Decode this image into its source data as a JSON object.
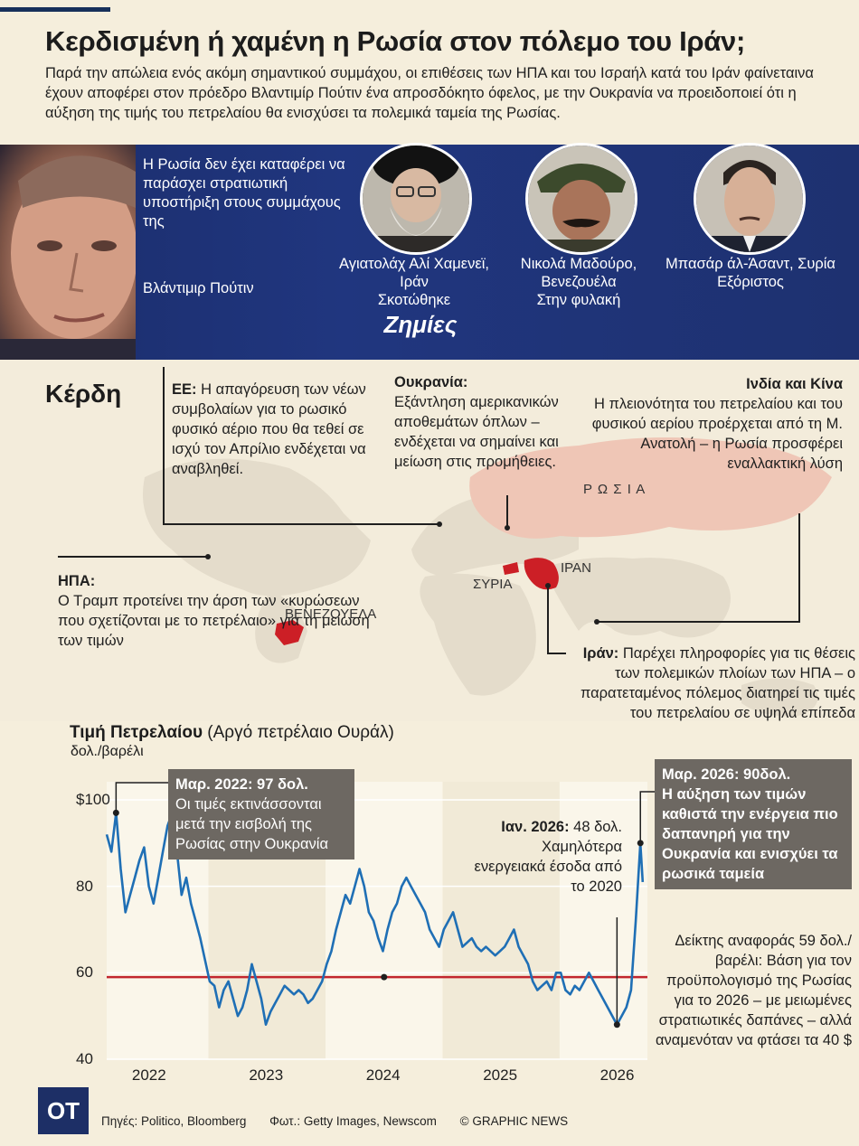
{
  "header": {
    "title": "Κερδισμένη ή χαμένη η Ρωσία στον πόλεμο του Ιράν;",
    "subtitle": "Παρά την απώλεια ενός ακόμη σημαντικού συμμάχου, οι επιθέσεις των ΗΠΑ και του Ισραήλ κατά του Ιράν φαίνεταινα έχουν αποφέρει στον πρόεδρο Βλαντιμίρ Πούτιν ένα απροσδόκητο όφελος, με την Ουκρανία να προειδοποιεί ότι η αύξηση της τιμής του πετρελαίου θα ενισχύσει τα πολεμικά ταμεία της Ρωσίας."
  },
  "losses": {
    "putin_quote": "Η Ρωσία δεν έχει καταφέρει να παράσχει στρατιωτική υποστήριξη στους συμμάχους της",
    "putin_name": "Βλάντιμιρ Πούτιν",
    "title": "Ζημίες",
    "allies": [
      {
        "name": "Αγιατολάχ Αλί Χαμενεϊ, Ιράν",
        "status": "Σκοτώθηκε"
      },
      {
        "name": "Νικολά Μαδούρο, Βενεζουέλα",
        "status": "Στην φυλακή"
      },
      {
        "name": "Μπασάρ άλ-Άσαντ, Συρία",
        "status": "Εξόριστος"
      }
    ]
  },
  "gains": {
    "title": "Κέρδη",
    "eu": {
      "label": "ΕΕ:",
      "text": "Η απαγόρευση των νέων συμβολαίων για το ρωσικό φυσικό αέριο που θα τεθεί σε ισχύ τον Απρίλιο ενδέχεται να αναβληθεί."
    },
    "ukraine": {
      "label": "Ουκρανία:",
      "text": "Εξάντληση αμερικανικών αποθεμάτων όπλων – ενδέχεται να σημαίνει και μείωση στις προμήθειες."
    },
    "india_china": {
      "label": "Ινδία και Κίνα",
      "text": "Η πλειονότητα του πετρελαίου και του φυσικού αερίου προέρχεται από τη Μ. Ανατολή – η Ρωσία προσφέρει εναλλακτική λύση"
    },
    "usa": {
      "label": "ΗΠΑ:",
      "text": "Ο Τραμπ προτείνει την άρση των «κυρώσεων που σχετίζονται με το πετρέλαιο» για τη μείωση των τιμών"
    },
    "iran": {
      "label": "Ιράν:",
      "text": "Παρέχει πληροφορίες για τις θέσεις των πολεμικών πλοίων των ΗΠΑ – ο παρατεταμένος πόλεμος διατηρεί τις τιμές του πετρελαίου σε υψηλά επίπεδα"
    }
  },
  "map": {
    "labels": {
      "russia": "Ρ Ω Σ Ι Α",
      "iran": "ΙΡΑΝ",
      "syria": "ΣΥΡΙΑ",
      "venezuela": "ΒΕΝΕΖΟΥΕΛΑ"
    },
    "colors": {
      "land": "#e4dccb",
      "russia": "#efc6b6",
      "highlight": "#cc1f26"
    }
  },
  "chart": {
    "title_bold": "Τιμή Πετρελαίου",
    "title_rest": "(Αργό πετρέλαιο Ουράλ)",
    "unit": "δολ./βαρέλι",
    "callout_2022": {
      "head": "Μαρ. 2022: 97 δολ.",
      "text": "Οι τιμές εκτινάσσονται μετά την εισβολή της Ρωσίας στην Ουκρανία"
    },
    "callout_jan2026": {
      "head": "Ιαν. 2026:",
      "value": "48 δολ.",
      "text": "Χαμηλότερα ενεργειακά έσοδα από το 2020"
    },
    "callout_mar2026": {
      "head": "Μαρ. 2026: 90δολ.",
      "text": "Η αύξηση των τιμών καθιστά την ενέργεια πιο δαπανηρή για την Ουκρανία και ενισχύει τα ρωσικά ταμεία"
    },
    "reference_note": "Δείκτης αναφοράς 59 δολ./βαρέλι: Βάση για τον προϋπολογισμό της Ρωσίας για το 2026 – με μειωμένες στρατιωτικές δαπάνες – αλλά αναμενόταν να φτάσει τα 40 $"
  },
  "chart_data": {
    "type": "line",
    "title": "Τιμή Πετρελαίου (Αργό πετρέλαιο Ουράλ)",
    "ylabel": "δολ./βαρέλι",
    "ylim": [
      40,
      100
    ],
    "yticks": [
      "$100",
      "80",
      "60",
      "40"
    ],
    "ytick_values": [
      100,
      80,
      60,
      40
    ],
    "xticks": [
      "2022",
      "2023",
      "2024",
      "2025",
      "2026"
    ],
    "xtick_values": [
      2022,
      2023,
      2024,
      2025,
      2026
    ],
    "xlim": [
      2021.63,
      2026.25
    ],
    "reference_line": 59,
    "series": [
      {
        "name": "Ουράλ",
        "x": [
          2021.63,
          2021.67,
          2021.71,
          2021.75,
          2021.79,
          2021.83,
          2021.87,
          2021.91,
          2021.95,
          2021.99,
          2022.03,
          2022.07,
          2022.11,
          2022.15,
          2022.19,
          2022.23,
          2022.27,
          2022.31,
          2022.35,
          2022.39,
          2022.43,
          2022.47,
          2022.51,
          2022.55,
          2022.59,
          2022.63,
          2022.67,
          2022.71,
          2022.75,
          2022.79,
          2022.83,
          2022.87,
          2022.91,
          2022.95,
          2022.99,
          2023.03,
          2023.07,
          2023.11,
          2023.15,
          2023.19,
          2023.23,
          2023.27,
          2023.31,
          2023.35,
          2023.39,
          2023.43,
          2023.47,
          2023.51,
          2023.55,
          2023.59,
          2023.63,
          2023.67,
          2023.71,
          2023.75,
          2023.79,
          2023.83,
          2023.87,
          2023.91,
          2023.95,
          2023.99,
          2024.03,
          2024.07,
          2024.11,
          2024.15,
          2024.19,
          2024.23,
          2024.27,
          2024.31,
          2024.35,
          2024.39,
          2024.43,
          2024.47,
          2024.51,
          2024.55,
          2024.59,
          2024.63,
          2024.67,
          2024.71,
          2024.75,
          2024.79,
          2024.83,
          2024.87,
          2024.91,
          2024.95,
          2024.99,
          2025.03,
          2025.07,
          2025.11,
          2025.15,
          2025.19,
          2025.23,
          2025.27,
          2025.31,
          2025.35,
          2025.39,
          2025.43,
          2025.47,
          2025.51,
          2025.55,
          2025.59,
          2025.63,
          2025.67,
          2025.71,
          2025.75,
          2025.79,
          2025.83,
          2025.87,
          2025.91,
          2025.95,
          2025.99,
          2026.03,
          2026.07,
          2026.11,
          2026.15,
          2026.19,
          2026.21
        ],
        "y": [
          92,
          88,
          97,
          84,
          74,
          78,
          82,
          86,
          89,
          80,
          76,
          82,
          88,
          94,
          97,
          88,
          78,
          82,
          76,
          72,
          68,
          63,
          58,
          57,
          52,
          56,
          58,
          54,
          50,
          52,
          56,
          62,
          58,
          54,
          48,
          51,
          53,
          55,
          57,
          56,
          55,
          56,
          55,
          53,
          54,
          56,
          58,
          62,
          65,
          70,
          74,
          78,
          76,
          80,
          84,
          80,
          74,
          72,
          68,
          65,
          70,
          74,
          76,
          80,
          82,
          80,
          78,
          76,
          74,
          70,
          68,
          66,
          70,
          72,
          74,
          70,
          66,
          67,
          68,
          66,
          65,
          66,
          65,
          64,
          65,
          66,
          68,
          70,
          66,
          64,
          62,
          58,
          56,
          57,
          58,
          56,
          60,
          60,
          56,
          55,
          57,
          56,
          58,
          60,
          58,
          56,
          54,
          52,
          50,
          48,
          50,
          52,
          56,
          72,
          90,
          81
        ]
      }
    ],
    "annotations": [
      "Μαρ. 2022: 97 δολ.",
      "Ιαν. 2026: 48 δολ.",
      "Μαρ. 2026: 90δολ."
    ]
  },
  "footer": {
    "logo": "OT",
    "sources": "Πηγές: Politico, Bloomberg",
    "photos": "Φωτ.: Getty Images, Newscom",
    "copyright": "© GRAPHIC NEWS"
  }
}
